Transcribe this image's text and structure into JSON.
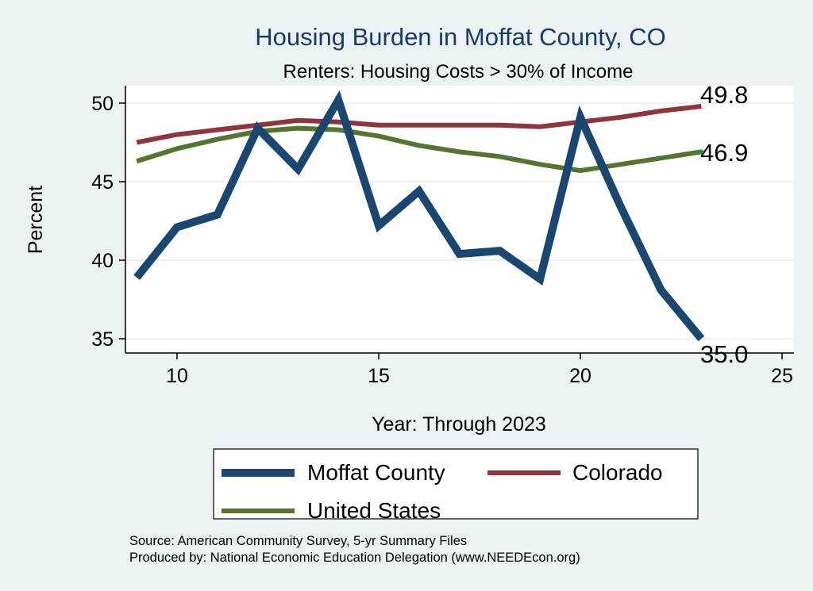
{
  "chart_data": {
    "type": "line",
    "title": "Housing Burden in Moffat County, CO",
    "subtitle": "Renters: Housing Costs > 30% of Income",
    "xlabel": "Year: Through 2023",
    "ylabel": "Percent",
    "xlim": [
      8.7,
      25.4
    ],
    "ylim": [
      34.1,
      51.1
    ],
    "xticks": [
      10,
      15,
      20,
      25
    ],
    "yticks": [
      35,
      40,
      45,
      50
    ],
    "grid": true,
    "legend_placement": "bottom",
    "x": [
      9,
      10,
      11,
      12,
      13,
      14,
      15,
      16,
      17,
      18,
      19,
      20,
      21,
      22,
      23
    ],
    "series": [
      {
        "name": "Moffat County",
        "color": "#1a476f",
        "values": [
          38.9,
          42.1,
          42.9,
          48.4,
          45.8,
          50.2,
          42.2,
          44.4,
          40.4,
          40.6,
          38.8,
          49.1,
          43.4,
          38.1,
          35.0
        ],
        "end_label": "35.0"
      },
      {
        "name": "Colorado",
        "color": "#90353b",
        "values": [
          47.5,
          48.0,
          48.3,
          48.6,
          48.9,
          48.8,
          48.6,
          48.6,
          48.6,
          48.6,
          48.5,
          48.8,
          49.1,
          49.5,
          49.8
        ],
        "end_label": "49.8"
      },
      {
        "name": "United States",
        "color": "#55752f",
        "values": [
          46.3,
          47.1,
          47.7,
          48.2,
          48.4,
          48.3,
          47.9,
          47.3,
          46.9,
          46.6,
          46.1,
          45.7,
          46.1,
          46.5,
          46.9
        ],
        "end_label": "46.9"
      }
    ],
    "notes": [
      "Source: American Community Survey, 5-yr Summary Files",
      "Produced by: National Economic Education Delegation (www.NEEDEcon.org)"
    ]
  }
}
